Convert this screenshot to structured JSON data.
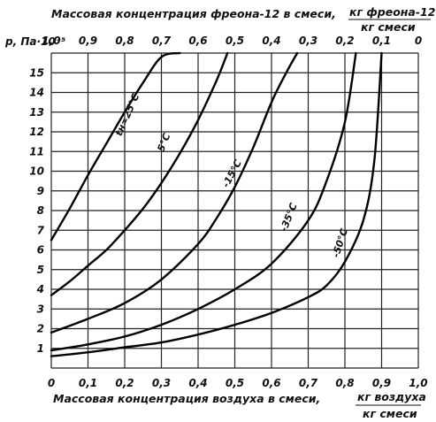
{
  "chart_data": {
    "type": "line",
    "title_top": "Массовая концентрация фреона-12 в смеси,",
    "top_unit_num": "кг фреона-12",
    "top_unit_den": "кг смеси",
    "xlabel": "Массовая концентрация воздуха в смеси,",
    "x_unit_num": "кг воздуха",
    "x_unit_den": "кг смеси",
    "ylabel": "p, Па·10⁻⁵",
    "x_ticks": [
      "0",
      "0,1",
      "0,2",
      "0,3",
      "0,4",
      "0,5",
      "0,6",
      "0,7",
      "0,8",
      "0,9",
      "1,0"
    ],
    "top_ticks": [
      "1,0",
      "0,9",
      "0,8",
      "0,7",
      "0,6",
      "0,5",
      "0,4",
      "0,3",
      "0,2",
      "0,1",
      "0"
    ],
    "y_ticks": [
      "1",
      "2",
      "3",
      "4",
      "5",
      "6",
      "7",
      "8",
      "9",
      "10",
      "11",
      "12",
      "13",
      "14",
      "15"
    ],
    "xlim": [
      0,
      1.0
    ],
    "ylim": [
      0,
      16
    ],
    "grid": true,
    "series": [
      {
        "name": "tн=25°C",
        "x": [
          0,
          0.05,
          0.1,
          0.15,
          0.2,
          0.25,
          0.3,
          0.35
        ],
        "y": [
          6.5,
          8.1,
          9.8,
          11.4,
          13.0,
          14.5,
          15.8,
          16.0
        ]
      },
      {
        "name": "5°C",
        "x": [
          0,
          0.05,
          0.1,
          0.15,
          0.2,
          0.25,
          0.3,
          0.35,
          0.4,
          0.45,
          0.48
        ],
        "y": [
          3.7,
          4.4,
          5.2,
          6.0,
          7.0,
          8.1,
          9.4,
          10.9,
          12.6,
          14.6,
          16.0
        ]
      },
      {
        "name": "-15°C",
        "x": [
          0,
          0.1,
          0.2,
          0.3,
          0.4,
          0.45,
          0.5,
          0.55,
          0.6,
          0.64,
          0.67
        ],
        "y": [
          1.8,
          2.5,
          3.3,
          4.5,
          6.3,
          7.6,
          9.2,
          11.2,
          13.5,
          15.0,
          16.0
        ]
      },
      {
        "name": "-35°C",
        "x": [
          0,
          0.1,
          0.2,
          0.3,
          0.4,
          0.5,
          0.6,
          0.7,
          0.75,
          0.8,
          0.83
        ],
        "y": [
          0.9,
          1.2,
          1.6,
          2.2,
          3.0,
          4.0,
          5.3,
          7.5,
          9.5,
          12.5,
          16.0
        ]
      },
      {
        "name": "-50°C",
        "x": [
          0,
          0.1,
          0.2,
          0.3,
          0.4,
          0.5,
          0.6,
          0.7,
          0.75,
          0.8,
          0.85,
          0.88,
          0.9
        ],
        "y": [
          0.6,
          0.8,
          1.05,
          1.3,
          1.7,
          2.2,
          2.8,
          3.6,
          4.2,
          5.4,
          7.5,
          10.5,
          16.0
        ]
      }
    ]
  }
}
